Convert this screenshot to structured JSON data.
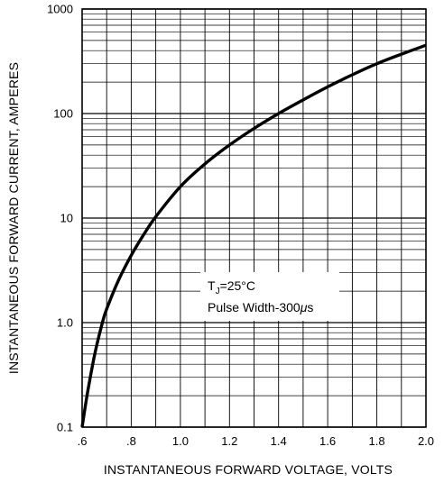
{
  "chart_data": {
    "type": "line",
    "xlabel": "INSTANTANEOUS FORWARD VOLTAGE, VOLTS",
    "ylabel": "INSTANTANEOUS FORWARD CURRENT, AMPERES",
    "xlim": [
      0.6,
      2.0
    ],
    "ylim": [
      0.1,
      1000
    ],
    "yscale": "log",
    "grid": true,
    "x_tick_values": [
      0.6,
      0.8,
      1.0,
      1.2,
      1.4,
      1.6,
      1.8,
      2.0
    ],
    "x_tick_labels": [
      ".6",
      ".8",
      "1.0",
      "1.2",
      "1.4",
      "1.6",
      "1.8",
      "2.0"
    ],
    "y_tick_values": [
      0.1,
      1,
      10,
      100,
      1000
    ],
    "y_tick_labels": [
      "0.1",
      "1.0",
      "10",
      "100",
      "1000"
    ],
    "annotation": {
      "tj_symbol": "T",
      "tj_subscript": "J",
      "tj_value": "=25°C",
      "pulse_prefix": "Pulse Width-300",
      "pulse_mu": "μ",
      "pulse_suffix": "s"
    },
    "series": [
      {
        "x": [
          0.6,
          0.62,
          0.65,
          0.68,
          0.7,
          0.75,
          0.8,
          0.85,
          0.9,
          1.0,
          1.1,
          1.2,
          1.3,
          1.4,
          1.5,
          1.6,
          1.7,
          1.8,
          1.9,
          2.0
        ],
        "y": [
          0.1,
          0.2,
          0.48,
          0.95,
          1.35,
          2.6,
          4.4,
          6.9,
          10.3,
          20,
          33,
          50,
          72,
          100,
          135,
          180,
          235,
          300,
          370,
          450
        ]
      }
    ]
  }
}
